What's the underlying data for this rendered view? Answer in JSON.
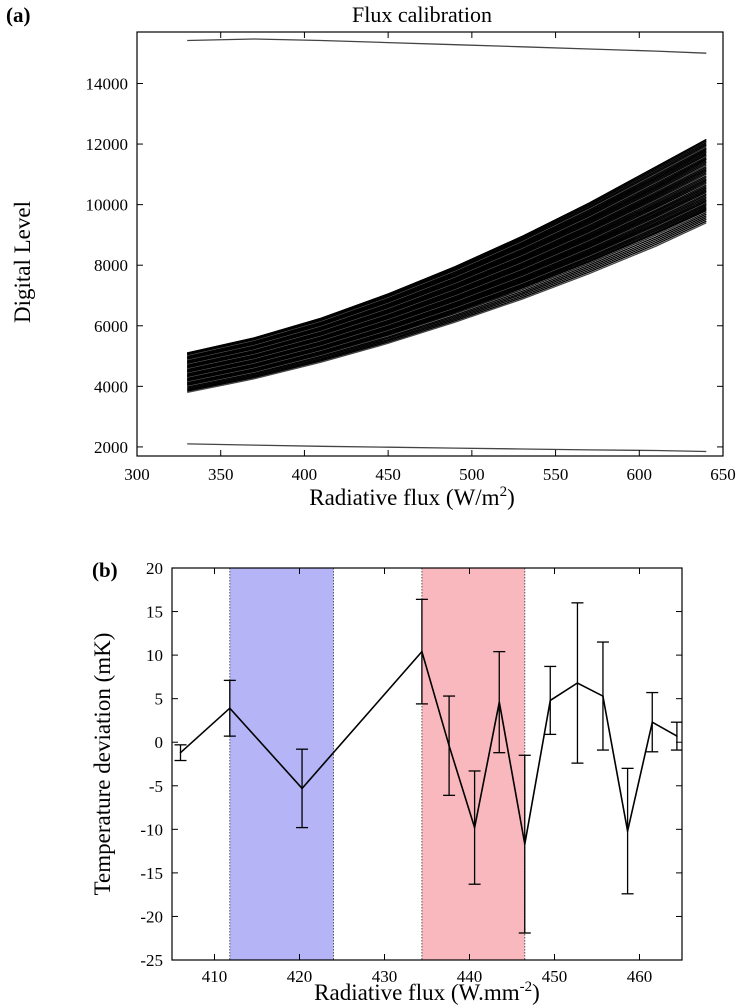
{
  "chart_data": [
    {
      "panel_label": "(a)",
      "type": "line",
      "title": "Flux calibration",
      "xlabel": "Radiative flux (W/m",
      "xlabel_sup": "2",
      "xlabel_close": ")",
      "ylabel": "Digital Level",
      "xlim": [
        300,
        650
      ],
      "ylim": [
        1700,
        15700
      ],
      "xticks": [
        "300",
        "350",
        "400",
        "450",
        "500",
        "550",
        "600",
        "650"
      ],
      "yticks": [
        "2000",
        "4000",
        "6000",
        "8000",
        "10000",
        "12000",
        "14000"
      ],
      "x": [
        330,
        370,
        410,
        450,
        490,
        530,
        570,
        610,
        640
      ],
      "series": [
        {
          "values": [
            15420,
            15470,
            15420,
            15350,
            15280,
            15210,
            15140,
            15070,
            15000
          ]
        },
        {
          "values": [
            5100,
            5600,
            6250,
            7050,
            7950,
            8950,
            10050,
            11250,
            12150
          ]
        },
        {
          "values": [
            4950,
            5450,
            6080,
            6850,
            7720,
            8690,
            9760,
            10920,
            11820
          ]
        },
        {
          "values": [
            4800,
            5300,
            5920,
            6660,
            7500,
            8440,
            9480,
            10600,
            11500
          ]
        },
        {
          "values": [
            4650,
            5140,
            5750,
            6470,
            7290,
            8200,
            9200,
            10290,
            11150
          ]
        },
        {
          "values": [
            4500,
            4980,
            5580,
            6280,
            7080,
            7960,
            8930,
            9980,
            10800
          ]
        },
        {
          "values": [
            4350,
            4820,
            5410,
            6090,
            6870,
            7720,
            8660,
            9670,
            10450
          ]
        },
        {
          "values": [
            4200,
            4670,
            5240,
            5900,
            6660,
            7480,
            8390,
            9360,
            10100
          ]
        },
        {
          "values": [
            4050,
            4510,
            5070,
            5710,
            6440,
            7240,
            8110,
            9050,
            9800
          ]
        },
        {
          "values": [
            3800,
            4250,
            4800,
            5420,
            6120,
            6880,
            7720,
            8630,
            9400
          ]
        },
        {
          "values": [
            2100,
            2060,
            2020,
            1990,
            1960,
            1930,
            1900,
            1880,
            1850
          ]
        }
      ]
    },
    {
      "panel_label": "(b)",
      "type": "line",
      "xlabel": "Radiative flux (W.mm",
      "xlabel_sup": "-2",
      "xlabel_close": ")",
      "ylabel": "Temperature deviation (mK)",
      "xlim": [
        405,
        465
      ],
      "ylim": [
        -25,
        20
      ],
      "xticks": [
        "410",
        "420",
        "430",
        "440",
        "450",
        "460"
      ],
      "yticks": [
        "-25",
        "-20",
        "-15",
        "-10",
        "-5",
        "0",
        "5",
        "10",
        "15",
        "20"
      ],
      "bands": [
        {
          "x0": 411.8,
          "x1": 424,
          "color": "#b4b4f6"
        },
        {
          "x0": 434.4,
          "x1": 446.5,
          "color": "#f8b8bd"
        }
      ],
      "x": [
        406,
        411.8,
        420.3,
        434.4,
        437.6,
        440.6,
        443.5,
        446.5,
        449.5,
        452.7,
        455.7,
        458.6,
        461.5,
        464.4
      ],
      "y": [
        -1.2,
        3.9,
        -5.3,
        10.4,
        -0.4,
        -9.8,
        4.6,
        -11.7,
        4.8,
        6.8,
        5.3,
        -10.2,
        2.3,
        0.7
      ],
      "yerr": [
        0.9,
        3.2,
        4.5,
        6.0,
        5.7,
        6.5,
        5.8,
        10.2,
        3.9,
        9.2,
        6.2,
        7.2,
        3.4,
        1.6
      ]
    }
  ]
}
